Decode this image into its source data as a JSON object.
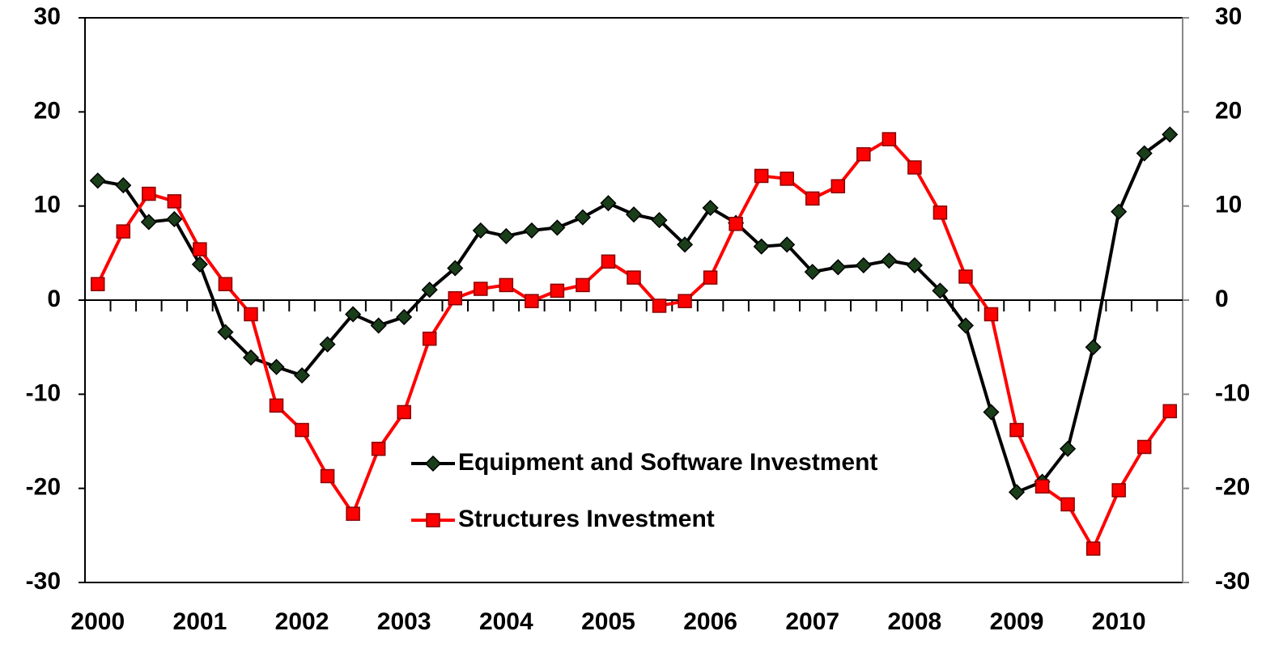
{
  "chart_data": {
    "type": "line",
    "categories": [
      "2000",
      null,
      null,
      null,
      "2001",
      null,
      null,
      null,
      "2002",
      null,
      null,
      null,
      "2003",
      null,
      null,
      null,
      "2004",
      null,
      null,
      null,
      "2005",
      null,
      null,
      null,
      "2006",
      null,
      null,
      null,
      "2007",
      null,
      null,
      null,
      "2008",
      null,
      null,
      null,
      "2009",
      null,
      null,
      null,
      "2010",
      null,
      null
    ],
    "series": [
      {
        "name": "Equipment and Software Investment",
        "color": "#000000",
        "marker": "diamond",
        "marker_color": "#1a3d1a",
        "values": [
          12.7,
          12.2,
          8.3,
          8.6,
          3.8,
          -3.4,
          -6.1,
          -7.1,
          -8.0,
          -4.7,
          -1.5,
          -2.7,
          -1.8,
          1.1,
          3.4,
          7.4,
          6.8,
          7.4,
          7.7,
          8.8,
          10.3,
          9.1,
          8.5,
          5.9,
          9.8,
          8.2,
          5.7,
          5.9,
          3.0,
          3.5,
          3.7,
          4.2,
          3.7,
          1.0,
          -2.7,
          -11.9,
          -20.4,
          -19.3,
          -15.8,
          -5.0,
          9.4,
          15.6,
          17.6
        ]
      },
      {
        "name": "Structures Investment",
        "color": "#ff0000",
        "marker": "square",
        "marker_color": "#ff0000",
        "values": [
          1.7,
          7.3,
          11.3,
          10.5,
          5.4,
          1.7,
          -1.5,
          -11.2,
          -13.8,
          -18.7,
          -22.7,
          -15.8,
          -11.9,
          -4.1,
          0.2,
          1.2,
          1.6,
          -0.1,
          1.0,
          1.6,
          4.1,
          2.4,
          -0.6,
          -0.1,
          2.4,
          8.1,
          13.2,
          12.9,
          10.8,
          12.1,
          15.5,
          17.1,
          14.1,
          9.3,
          2.5,
          -1.5,
          -13.8,
          -19.8,
          -21.7,
          -26.4,
          -20.2,
          -15.6,
          -11.8
        ]
      }
    ],
    "ylim": [
      -30,
      30
    ],
    "yticks": [
      -30,
      -20,
      -10,
      0,
      10,
      20,
      30
    ],
    "y2lim": [
      -30,
      30
    ],
    "y2ticks": [
      -30,
      -20,
      -10,
      0,
      10,
      20,
      30
    ],
    "grid": false
  }
}
